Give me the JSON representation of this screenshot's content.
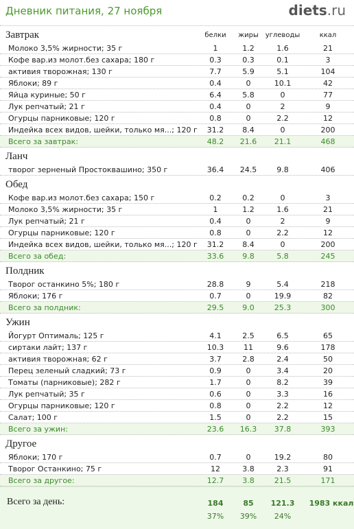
{
  "header": {
    "title": "Дневник питания, 27 ноября",
    "site": "diets",
    "site_suffix": ".ru"
  },
  "columns": [
    "белки",
    "жиры",
    "углеводы",
    "ккал"
  ],
  "meals": [
    {
      "name": "Завтрак",
      "rows": [
        [
          "Молоко 3,5% жирности; 35 г",
          "1",
          "1.2",
          "1.6",
          "21"
        ],
        [
          "Кофе вар.из молот.без сахара; 180 г",
          "0.3",
          "0.3",
          "0.1",
          "3"
        ],
        [
          "активия творожная; 130 г",
          "7.7",
          "5.9",
          "5.1",
          "104"
        ],
        [
          "Яблоки; 89 г",
          "0.4",
          "0",
          "10.1",
          "42"
        ],
        [
          "Яйца куриные; 50 г",
          "6.4",
          "5.8",
          "0",
          "77"
        ],
        [
          "Лук репчатый; 21 г",
          "0.4",
          "0",
          "2",
          "9"
        ],
        [
          "Огурцы парниковые; 120 г",
          "0.8",
          "0",
          "2.2",
          "12"
        ],
        [
          "Индейка всех видов, шейки, только мя...; 120 г",
          "31.2",
          "8.4",
          "0",
          "200"
        ]
      ],
      "total": [
        "Всего за завтрак:",
        "48.2",
        "21.6",
        "21.1",
        "468"
      ]
    },
    {
      "name": "Ланч",
      "rows": [
        [
          "творог зерненый Простоквашино; 350 г",
          "36.4",
          "24.5",
          "9.8",
          "406"
        ]
      ]
    },
    {
      "name": "Обед",
      "rows": [
        [
          "Кофе вар.из молот.без сахара; 150 г",
          "0.2",
          "0.2",
          "0",
          "3"
        ],
        [
          "Молоко 3,5% жирности; 35 г",
          "1",
          "1.2",
          "1.6",
          "21"
        ],
        [
          "Лук репчатый; 21 г",
          "0.4",
          "0",
          "2",
          "9"
        ],
        [
          "Огурцы парниковые; 120 г",
          "0.8",
          "0",
          "2.2",
          "12"
        ],
        [
          "Индейка всех видов, шейки, только мя...; 120 г",
          "31.2",
          "8.4",
          "0",
          "200"
        ]
      ],
      "total": [
        "Всего за обед:",
        "33.6",
        "9.8",
        "5.8",
        "245"
      ]
    },
    {
      "name": "Полдник",
      "rows": [
        [
          "Творог останкино 5%; 180 г",
          "28.8",
          "9",
          "5.4",
          "218"
        ],
        [
          "Яблоки; 176 г",
          "0.7",
          "0",
          "19.9",
          "82"
        ]
      ],
      "total": [
        "Всего за полдник:",
        "29.5",
        "9.0",
        "25.3",
        "300"
      ]
    },
    {
      "name": "Ужин",
      "rows": [
        [
          "Йогурт Оптималь; 125 г",
          "4.1",
          "2.5",
          "6.5",
          "65"
        ],
        [
          "сиртаки лайт; 137 г",
          "10.3",
          "11",
          "9.6",
          "178"
        ],
        [
          "активия творожная; 62 г",
          "3.7",
          "2.8",
          "2.4",
          "50"
        ],
        [
          "Перец зеленый сладкий; 73 г",
          "0.9",
          "0",
          "3.4",
          "20"
        ],
        [
          "Томаты (парниковые); 282 г",
          "1.7",
          "0",
          "8.2",
          "39"
        ],
        [
          "Лук репчатый; 35 г",
          "0.6",
          "0",
          "3.3",
          "16"
        ],
        [
          "Огурцы парниковые; 120 г",
          "0.8",
          "0",
          "2.2",
          "12"
        ],
        [
          "Салат; 100 г",
          "1.5",
          "0",
          "2.2",
          "15"
        ]
      ],
      "total": [
        "Всего за ужин:",
        "23.6",
        "16.3",
        "37.8",
        "393"
      ]
    },
    {
      "name": "Другое",
      "rows": [
        [
          "Яблоки; 170 г",
          "0.7",
          "0",
          "19.2",
          "80"
        ],
        [
          "Творог Останкино; 75 г",
          "12",
          "3.8",
          "2.3",
          "91"
        ]
      ],
      "total": [
        "Всего за другое:",
        "12.7",
        "3.8",
        "21.5",
        "171"
      ]
    }
  ],
  "day_total": {
    "label": "Всего за день:",
    "values": [
      "184",
      "85",
      "121.3",
      "1983 ккал"
    ],
    "percents": [
      "37%",
      "39%",
      "24%"
    ]
  }
}
